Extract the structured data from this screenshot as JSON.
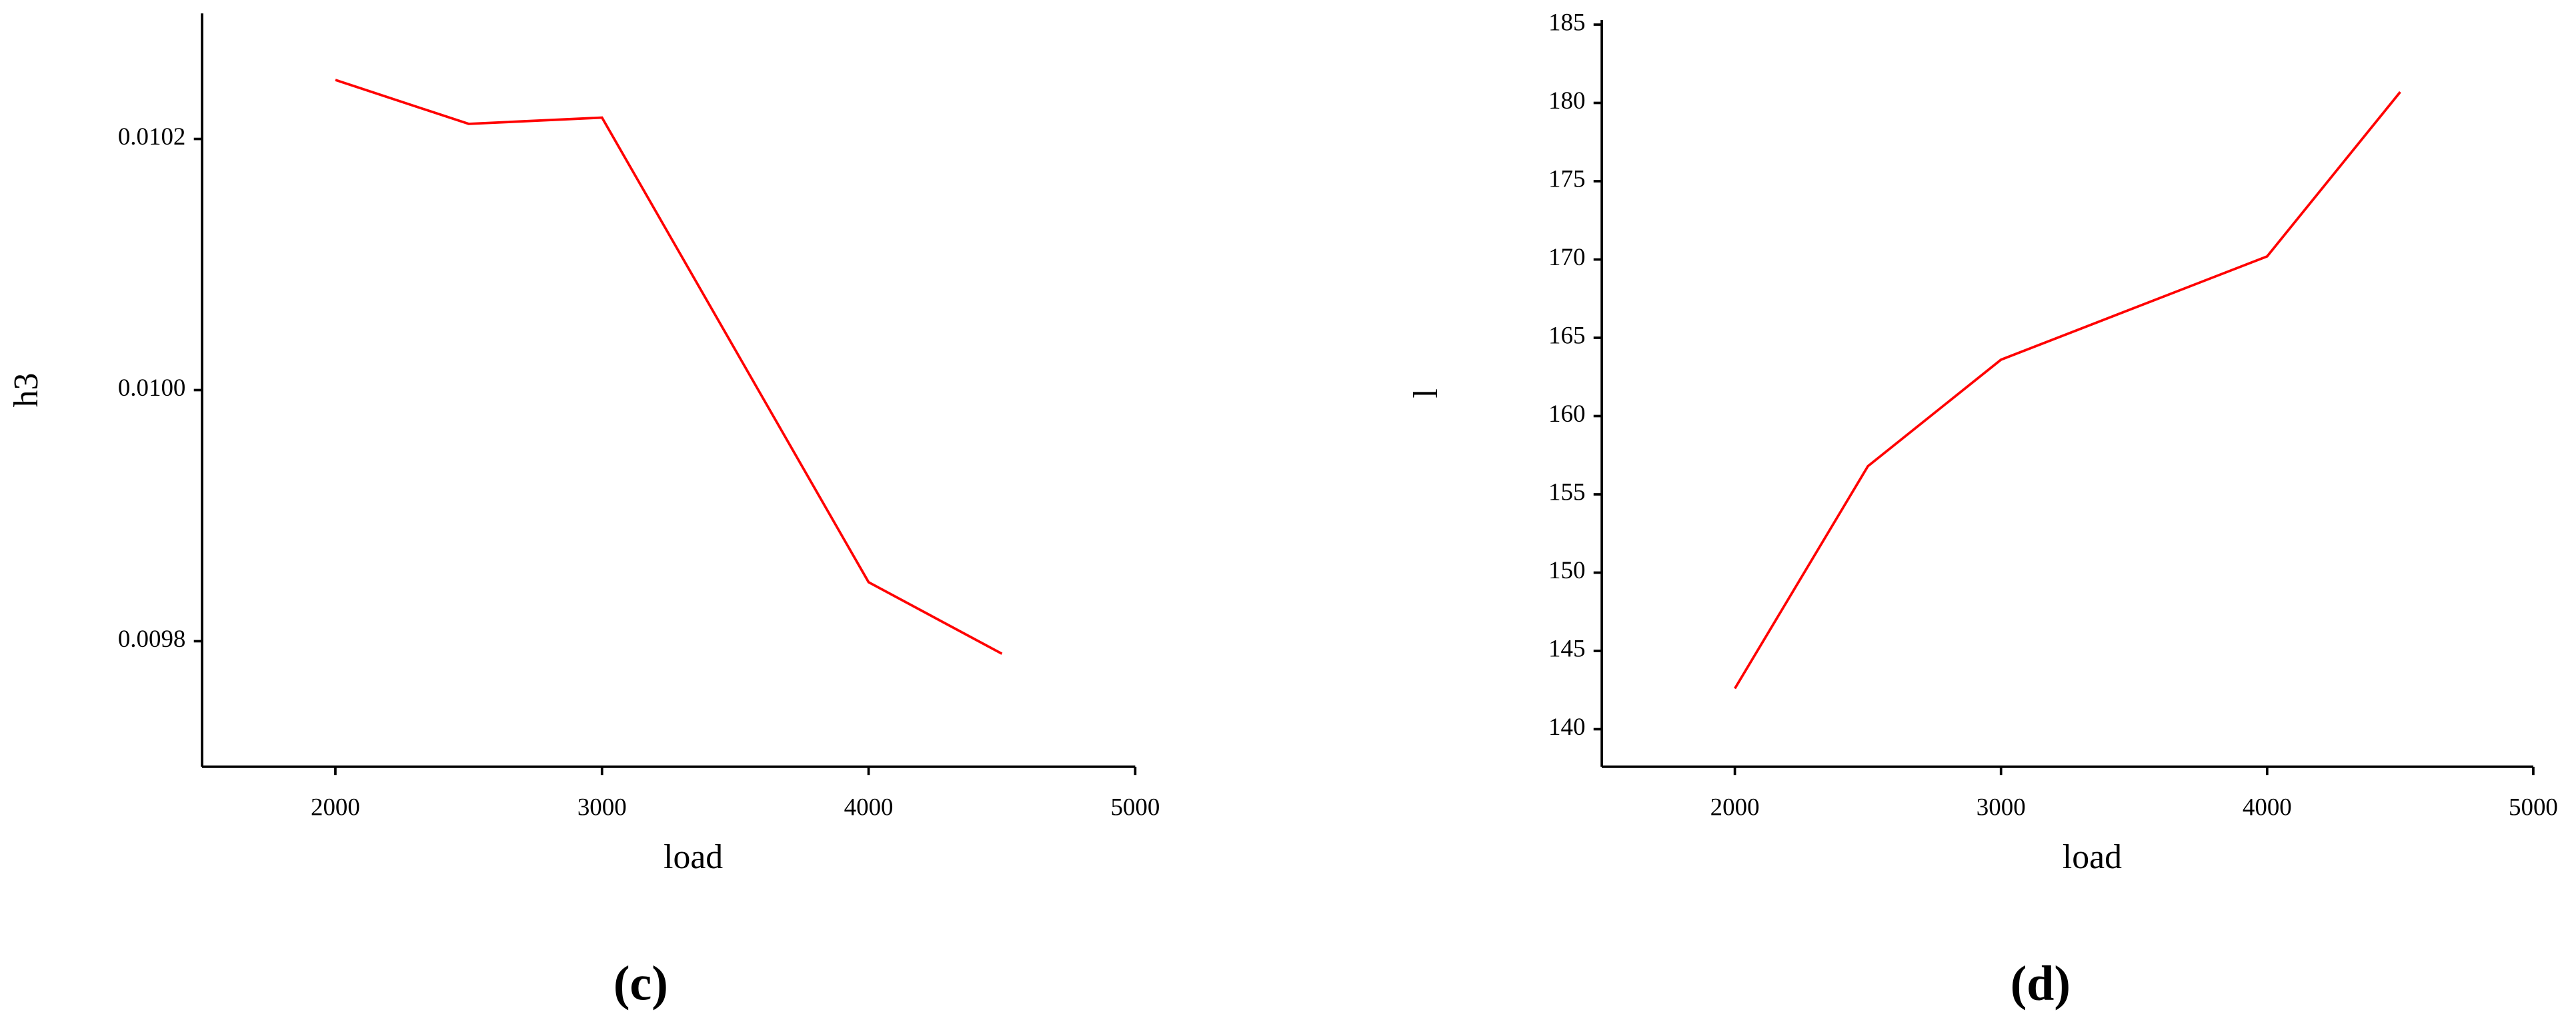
{
  "chart_data": [
    {
      "type": "line",
      "caption": "(c)",
      "x_label": "load",
      "y_label": "h3",
      "x": [
        2000,
        2500,
        3000,
        4000,
        4500
      ],
      "values": [
        0.010247,
        0.010212,
        0.010217,
        0.009847,
        0.00979
      ],
      "color": "#ff0000",
      "xlim": [
        1500,
        5000
      ],
      "xticks": [
        2000,
        3000,
        4000,
        5000
      ],
      "ylim": [
        0.0097,
        0.0103
      ],
      "yticks": [
        0.0098,
        {
          "value": 0.01,
          "label": "0.0100"
        },
        0.0102
      ]
    },
    {
      "type": "line",
      "caption": "(d)",
      "x_label": "load",
      "y_label": "l",
      "x": [
        2000,
        2500,
        3000,
        4000,
        4500
      ],
      "values": [
        142.6,
        156.8,
        163.6,
        170.2,
        180.7
      ],
      "color": "#ff0000",
      "xlim": [
        1500,
        5000
      ],
      "xticks": [
        2000,
        3000,
        4000,
        5000
      ],
      "ylim": [
        137.6,
        185.3
      ],
      "yticks": [
        140,
        145,
        150,
        155,
        160,
        165,
        170,
        175,
        180,
        185
      ]
    }
  ]
}
